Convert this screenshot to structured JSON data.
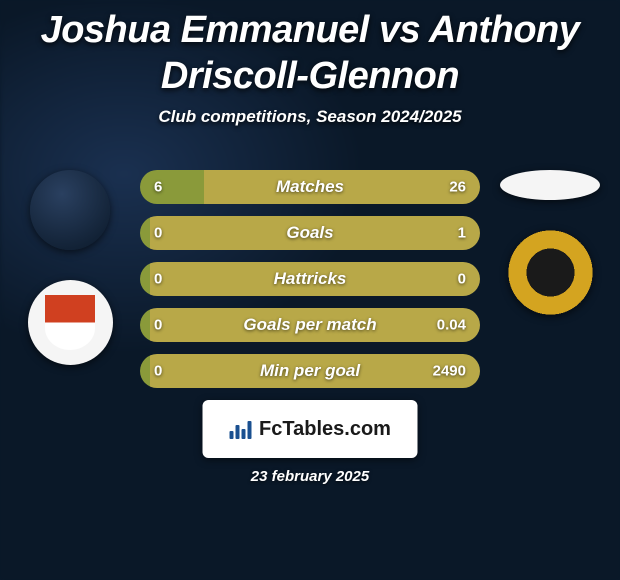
{
  "title": "Joshua Emmanuel vs Anthony Driscoll-Glennon",
  "subtitle": "Club competitions, Season 2024/2025",
  "colors": {
    "bar_left": "#8a9a3a",
    "bar_right": "#b8a848",
    "background": "#0a1a2a",
    "text": "#ffffff"
  },
  "stats": [
    {
      "label": "Matches",
      "left_val": "6",
      "right_val": "26",
      "left_pct": 18.75
    },
    {
      "label": "Goals",
      "left_val": "0",
      "right_val": "1",
      "left_pct": 3
    },
    {
      "label": "Hattricks",
      "left_val": "0",
      "right_val": "0",
      "left_pct": 3
    },
    {
      "label": "Goals per match",
      "left_val": "0",
      "right_val": "0.04",
      "left_pct": 3
    },
    {
      "label": "Min per goal",
      "left_val": "0",
      "right_val": "2490",
      "left_pct": 3
    }
  ],
  "footer": {
    "brand": "FcTables.com",
    "date": "23 february 2025"
  }
}
